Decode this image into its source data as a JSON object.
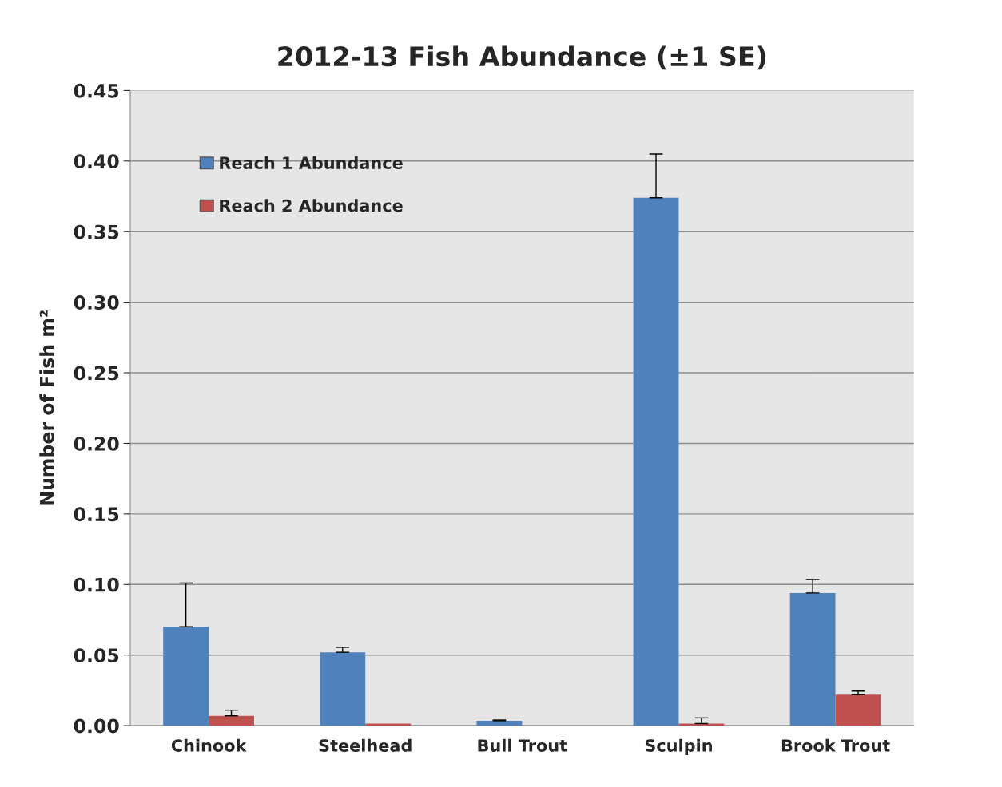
{
  "chart_data": {
    "type": "bar",
    "title": "2012-13 Fish Abundance (±1 SE)",
    "ylabel": "Number of Fish m²",
    "categories": [
      "Chinook",
      "Steelhead",
      "Bull Trout",
      "Sculpin",
      "Brook Trout"
    ],
    "series": [
      {
        "name": "Reach 1 Abundance",
        "color": "#4f81bd",
        "values": [
          0.07,
          0.052,
          0.0035,
          0.374,
          0.094
        ],
        "errors": [
          [
            0.07,
            0.101
          ],
          [
            0.052,
            0.0555
          ],
          [
            0.0035,
            0.004
          ],
          [
            0.374,
            0.405
          ],
          [
            0.094,
            0.1035
          ]
        ]
      },
      {
        "name": "Reach 2 Abundance",
        "color": "#c0504d",
        "values": [
          0.007,
          0.0015,
          0,
          0.0015,
          0.022
        ],
        "errors": [
          [
            0.007,
            0.011
          ],
          null,
          null,
          [
            0.0015,
            0.0055
          ],
          [
            0.022,
            0.0245
          ]
        ]
      }
    ],
    "ylim": [
      0,
      0.45
    ],
    "yticks": [
      {
        "value": 0,
        "label": "0.00"
      },
      {
        "value": 0.05,
        "label": "0.05"
      },
      {
        "value": 0.1,
        "label": "0.10"
      },
      {
        "value": 0.15,
        "label": "0.15"
      },
      {
        "value": 0.2,
        "label": "0.20"
      },
      {
        "value": 0.25,
        "label": "0.25"
      },
      {
        "value": 0.3,
        "label": "0.30"
      },
      {
        "value": 0.35,
        "label": "0.35"
      },
      {
        "value": 0.4,
        "label": "0.40"
      },
      {
        "value": 0.45,
        "label": "0.45"
      }
    ],
    "grid": "y",
    "legend": "top left"
  }
}
